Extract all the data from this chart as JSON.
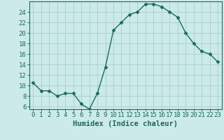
{
  "x": [
    0,
    1,
    2,
    3,
    4,
    5,
    6,
    7,
    8,
    9,
    10,
    11,
    12,
    13,
    14,
    15,
    16,
    17,
    18,
    19,
    20,
    21,
    22,
    23
  ],
  "y": [
    10.5,
    9.0,
    9.0,
    8.0,
    8.5,
    8.5,
    6.5,
    5.5,
    8.5,
    13.5,
    20.5,
    22.0,
    23.5,
    24.0,
    25.5,
    25.5,
    25.0,
    24.0,
    23.0,
    20.0,
    18.0,
    16.5,
    16.0,
    14.5
  ],
  "line_color": "#1a6b5a",
  "bg_color": "#cceae8",
  "grid_color": "#aad4d0",
  "xlabel": "Humidex (Indice chaleur)",
  "yticks": [
    6,
    8,
    10,
    12,
    14,
    16,
    18,
    20,
    22,
    24
  ],
  "xticks": [
    0,
    1,
    2,
    3,
    4,
    5,
    6,
    7,
    8,
    9,
    10,
    11,
    12,
    13,
    14,
    15,
    16,
    17,
    18,
    19,
    20,
    21,
    22,
    23
  ],
  "xlim": [
    -0.5,
    23.5
  ],
  "ylim": [
    5.5,
    26.0
  ],
  "markersize": 2.5,
  "linewidth": 1.0,
  "xlabel_fontsize": 7.5,
  "tick_fontsize": 6.5
}
